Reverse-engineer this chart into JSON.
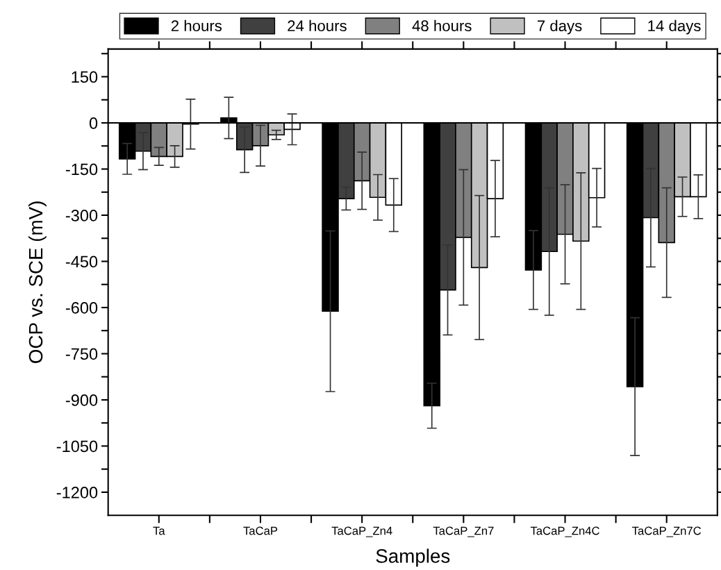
{
  "chart_data": {
    "type": "bar",
    "xlabel": "Samples",
    "ylabel": "OCP vs. SCE (mV)",
    "categories": [
      "Ta",
      "TaCaP",
      "TaCaP_Zn4",
      "TaCaP_Zn7",
      "TaCaP_Zn4C",
      "TaCaP_Zn7C"
    ],
    "series": [
      {
        "name": "2 hours",
        "color": "#000000",
        "values": [
          -117,
          16,
          -612,
          -919,
          -478,
          -857
        ],
        "errors": [
          50,
          67,
          261,
          73,
          128,
          224
        ]
      },
      {
        "name": "24 hours",
        "color": "#404040",
        "values": [
          -92,
          -87,
          -246,
          -543,
          -418,
          -308
        ],
        "errors": [
          60,
          74,
          37,
          146,
          207,
          160
        ]
      },
      {
        "name": "48 hours",
        "color": "#808080",
        "values": [
          -109,
          -74,
          -188,
          -372,
          -362,
          -389
        ],
        "errors": [
          29,
          66,
          93,
          220,
          161,
          178
        ]
      },
      {
        "name": "7 days",
        "color": "#c0c0c0",
        "values": [
          -109,
          -39,
          -242,
          -470,
          -384,
          -240
        ],
        "errors": [
          35,
          15,
          74,
          234,
          222,
          64
        ]
      },
      {
        "name": "14 days",
        "color": "#ffffff",
        "values": [
          -4,
          -21,
          -267,
          -246,
          -243,
          -240
        ],
        "errors": [
          81,
          50,
          86,
          124,
          95,
          71
        ]
      }
    ],
    "ylim": [
      -1275,
      240
    ],
    "yticks": [
      {
        "value": 225,
        "label": null
      },
      150,
      {
        "value": 75,
        "label": null
      },
      0,
      {
        "value": -75,
        "label": null
      },
      -150,
      {
        "value": -225,
        "label": null
      },
      -300,
      {
        "value": -375,
        "label": null
      },
      -450,
      {
        "value": -525,
        "label": null
      },
      -600,
      {
        "value": -675,
        "label": null
      },
      -750,
      {
        "value": -825,
        "label": null
      },
      -900,
      {
        "value": -975,
        "label": null
      },
      -1050,
      {
        "value": -1125,
        "label": null
      },
      -1200
    ],
    "ref_lines": [
      {
        "axis": "y",
        "value": 0,
        "color": "#000000"
      }
    ],
    "legend": "top"
  }
}
